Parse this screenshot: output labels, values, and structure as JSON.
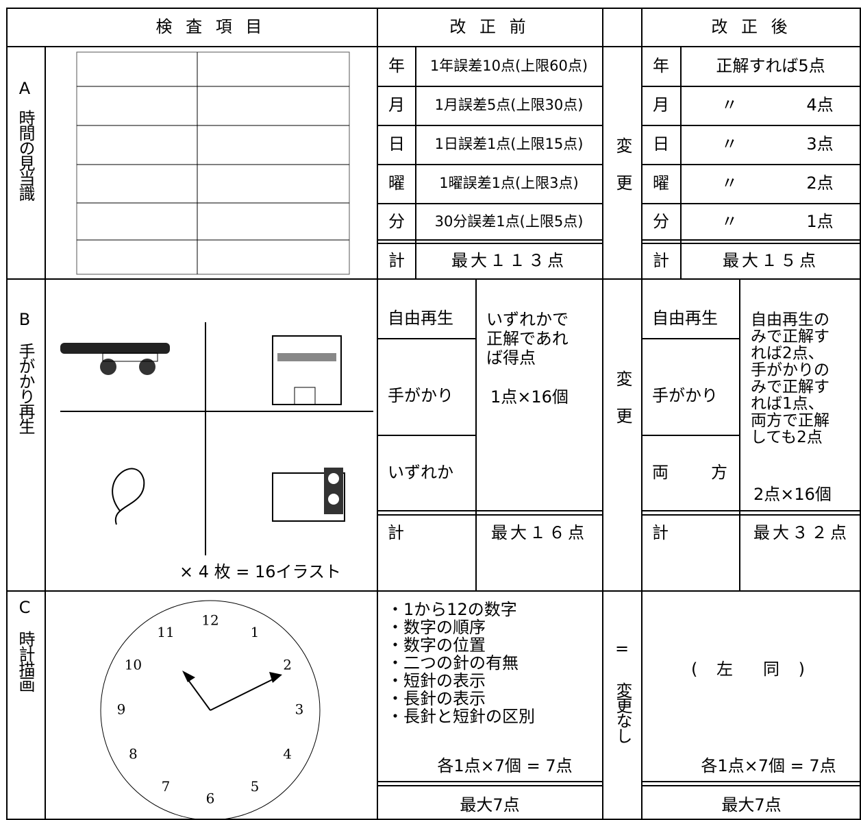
{
  "header": {
    "item": "検 査 項 目",
    "before": "改 正 前",
    "after": "改 正 後"
  },
  "a": {
    "label": "A",
    "name": "時間の見当識",
    "before": [
      [
        "年",
        "1年誤差10点(上限60点)"
      ],
      [
        "月",
        "1月誤差5点(上限30点)"
      ],
      [
        "日",
        "1日誤差1点(上限15点)"
      ],
      [
        "曜",
        "1曜誤差1点(上限3点)"
      ],
      [
        "分",
        "30分誤差1点(上限5点)"
      ]
    ],
    "before_total": [
      "計",
      "最大１１３点"
    ],
    "change": "変更",
    "after": [
      [
        "年",
        "正解すれば5点"
      ],
      [
        "月",
        "〃",
        "4点"
      ],
      [
        "日",
        "〃",
        "3点"
      ],
      [
        "曜",
        "〃",
        "2点"
      ],
      [
        "分",
        "〃",
        "1点"
      ]
    ],
    "after_total": [
      "計",
      "最大１５点"
    ]
  },
  "b": {
    "label": "B",
    "name": "手がかり再生",
    "caption": "× 4 枚 = 16イラスト",
    "before_modes": [
      "自由再生",
      "手がかり",
      "いずれか"
    ],
    "before_rule": [
      "いずれかで",
      "正解であれ",
      "ば得点"
    ],
    "before_unit": "1点×16個",
    "before_total": [
      "計",
      "最大１６点"
    ],
    "change": "変更",
    "after_modes": [
      "自由再生",
      "手がかり",
      "両　　方"
    ],
    "after_rule": [
      "自由再生の",
      "みで正解す",
      "れば2点、",
      "手がかりの",
      "みで正解す",
      "れば1点、",
      "両方で正解",
      "しても2点"
    ],
    "after_unit": "2点×16個",
    "after_total": [
      "計",
      "最大３２点"
    ]
  },
  "c": {
    "label": "C",
    "name": "時計描画",
    "clock": [
      "12",
      "1",
      "2",
      "3",
      "4",
      "5",
      "6",
      "7",
      "8",
      "9",
      "10",
      "11"
    ],
    "before_items": [
      "・1から12の数字",
      "・数字の順序",
      "・数字の位置",
      "・二つの針の有無",
      "・短針の表示",
      "・長針の表示",
      "・長針と短針の区別"
    ],
    "before_sum": "各1点×7個 = 7点",
    "before_total": "最大7点",
    "change": [
      "=",
      "変更なし"
    ],
    "after": "( 左　同 )",
    "after_sum": "各1点×7個 = 7点",
    "after_total": "最大7点"
  }
}
